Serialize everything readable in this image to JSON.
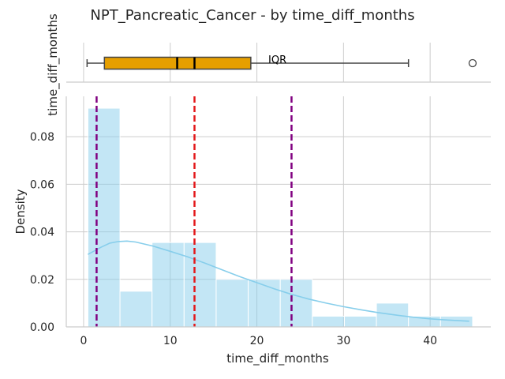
{
  "chart_data": {
    "type": "histogram",
    "title": "NPT_Pancreatic_Cancer - by time_diff_months",
    "xlabel": "time_diff_months",
    "ylabel": "Density",
    "xlim": [
      -2,
      47
    ],
    "ylim": [
      0,
      0.097
    ],
    "x_ticks": [
      0,
      10,
      20,
      30,
      40
    ],
    "y_ticks": [
      0.0,
      0.02,
      0.04,
      0.06,
      0.08
    ],
    "y_tick_labels": [
      "0.00",
      "0.02",
      "0.04",
      "0.06",
      "0.08"
    ],
    "grid": true,
    "bins": [
      {
        "x0": 0.5,
        "x1": 4.2,
        "density": 0.092
      },
      {
        "x0": 4.2,
        "x1": 7.9,
        "density": 0.015
      },
      {
        "x0": 7.9,
        "x1": 11.6,
        "density": 0.0355
      },
      {
        "x0": 11.6,
        "x1": 15.3,
        "density": 0.0355
      },
      {
        "x0": 15.3,
        "x1": 19.0,
        "density": 0.02
      },
      {
        "x0": 19.0,
        "x1": 22.7,
        "density": 0.02
      },
      {
        "x0": 22.7,
        "x1": 26.4,
        "density": 0.02
      },
      {
        "x0": 26.4,
        "x1": 30.1,
        "density": 0.0045
      },
      {
        "x0": 30.1,
        "x1": 33.8,
        "density": 0.0045
      },
      {
        "x0": 33.8,
        "x1": 37.5,
        "density": 0.01
      },
      {
        "x0": 37.5,
        "x1": 41.2,
        "density": 0.0045
      },
      {
        "x0": 41.2,
        "x1": 44.9,
        "density": 0.0045
      }
    ],
    "kde": {
      "x": [
        0.5,
        2,
        3,
        4,
        5,
        6,
        8,
        10,
        12,
        14,
        16,
        18,
        20,
        22,
        24,
        26,
        28,
        30,
        32,
        34,
        36,
        38,
        40,
        42,
        44.5
      ],
      "y": [
        0.0305,
        0.0335,
        0.0352,
        0.0359,
        0.0361,
        0.0357,
        0.034,
        0.0318,
        0.0295,
        0.0268,
        0.024,
        0.0212,
        0.0186,
        0.016,
        0.0137,
        0.0117,
        0.01,
        0.0085,
        0.0072,
        0.006,
        0.005,
        0.0041,
        0.0034,
        0.0029,
        0.0024
      ]
    },
    "vlines": [
      {
        "x": 1.5,
        "color": "#800080"
      },
      {
        "x": 12.8,
        "color": "#e31a1c"
      },
      {
        "x": 24.0,
        "color": "#800080"
      }
    ],
    "boxplot": {
      "ylabel": "time_diff_months",
      "whisker_low": 0.4,
      "q1": 2.4,
      "median": 10.8,
      "mean": 12.8,
      "q3": 19.3,
      "whisker_high": 37.5,
      "outliers": [
        44.9
      ],
      "annotation": "IQR"
    },
    "colors": {
      "bar_fill": "#87ceeb",
      "kde": "#87ceeb",
      "box_fill": "#e69f00",
      "grid": "#cccccc"
    }
  }
}
